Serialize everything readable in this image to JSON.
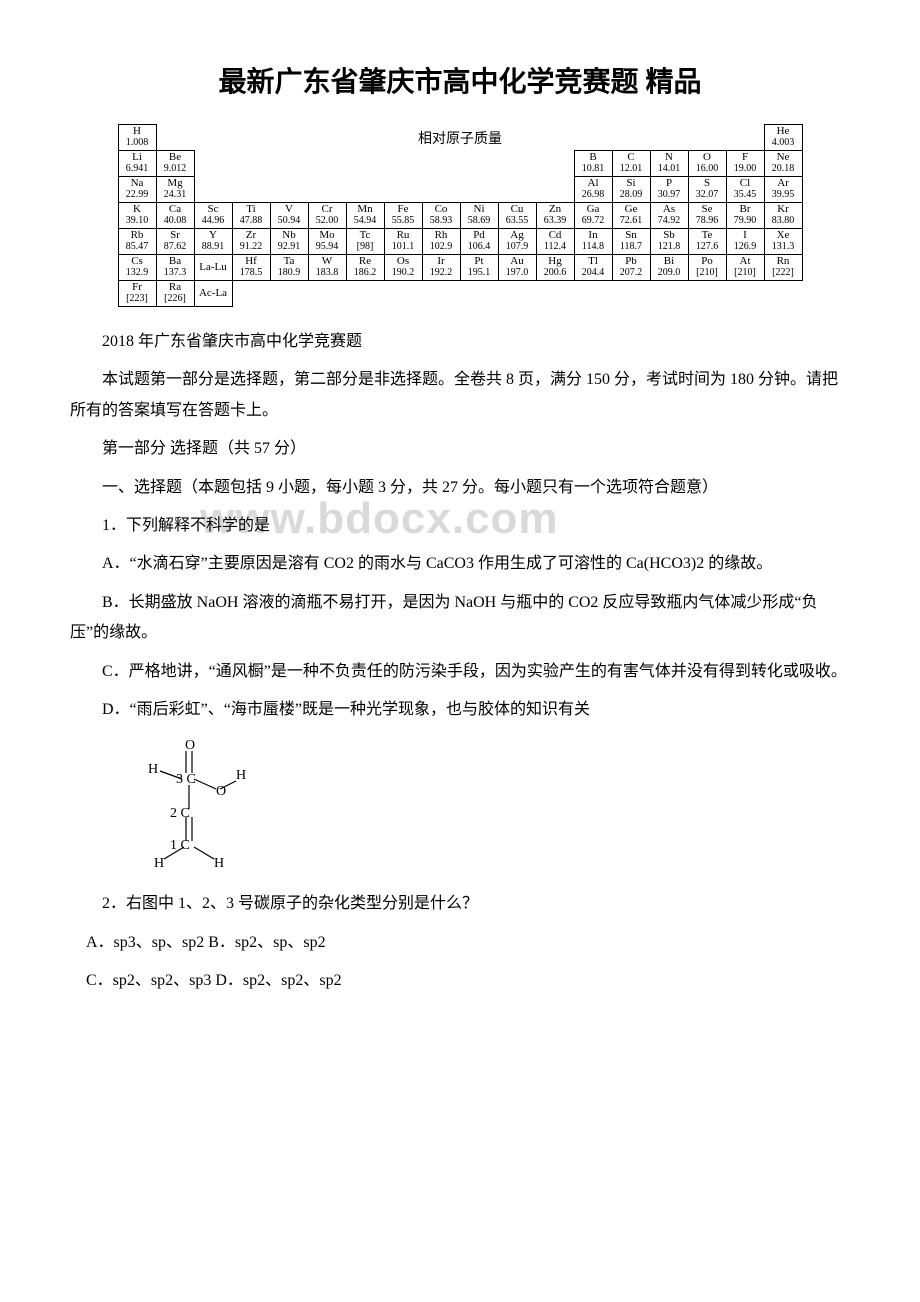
{
  "title": "最新广东省肇庆市高中化学竞赛题 精品",
  "periodic_table": {
    "caption": "相对原子质量",
    "row1": [
      {
        "sym": "H",
        "mass": "1.008"
      },
      null,
      null,
      null,
      null,
      null,
      null,
      null,
      null,
      null,
      null,
      null,
      null,
      null,
      null,
      null,
      null,
      {
        "sym": "He",
        "mass": "4.003"
      }
    ],
    "row2": [
      {
        "sym": "Li",
        "mass": "6.941"
      },
      {
        "sym": "Be",
        "mass": "9.012"
      },
      null,
      null,
      null,
      null,
      null,
      null,
      null,
      null,
      null,
      null,
      {
        "sym": "B",
        "mass": "10.81"
      },
      {
        "sym": "C",
        "mass": "12.01"
      },
      {
        "sym": "N",
        "mass": "14.01"
      },
      {
        "sym": "O",
        "mass": "16.00"
      },
      {
        "sym": "F",
        "mass": "19.00"
      },
      {
        "sym": "Ne",
        "mass": "20.18"
      }
    ],
    "row3": [
      {
        "sym": "Na",
        "mass": "22.99"
      },
      {
        "sym": "Mg",
        "mass": "24.31"
      },
      null,
      null,
      null,
      null,
      null,
      null,
      null,
      null,
      null,
      null,
      {
        "sym": "Al",
        "mass": "26.98"
      },
      {
        "sym": "Si",
        "mass": "28.09"
      },
      {
        "sym": "P",
        "mass": "30.97"
      },
      {
        "sym": "S",
        "mass": "32.07"
      },
      {
        "sym": "Cl",
        "mass": "35.45"
      },
      {
        "sym": "Ar",
        "mass": "39.95"
      }
    ],
    "row4": [
      {
        "sym": "K",
        "mass": "39.10"
      },
      {
        "sym": "Ca",
        "mass": "40.08"
      },
      {
        "sym": "Sc",
        "mass": "44.96"
      },
      {
        "sym": "Ti",
        "mass": "47.88"
      },
      {
        "sym": "V",
        "mass": "50.94"
      },
      {
        "sym": "Cr",
        "mass": "52.00"
      },
      {
        "sym": "Mn",
        "mass": "54.94"
      },
      {
        "sym": "Fe",
        "mass": "55.85"
      },
      {
        "sym": "Co",
        "mass": "58.93"
      },
      {
        "sym": "Ni",
        "mass": "58.69"
      },
      {
        "sym": "Cu",
        "mass": "63.55"
      },
      {
        "sym": "Zn",
        "mass": "63.39"
      },
      {
        "sym": "Ga",
        "mass": "69.72"
      },
      {
        "sym": "Ge",
        "mass": "72.61"
      },
      {
        "sym": "As",
        "mass": "74.92"
      },
      {
        "sym": "Se",
        "mass": "78.96"
      },
      {
        "sym": "Br",
        "mass": "79.90"
      },
      {
        "sym": "Kr",
        "mass": "83.80"
      }
    ],
    "row5": [
      {
        "sym": "Rb",
        "mass": "85.47"
      },
      {
        "sym": "Sr",
        "mass": "87.62"
      },
      {
        "sym": "Y",
        "mass": "88.91"
      },
      {
        "sym": "Zr",
        "mass": "91.22"
      },
      {
        "sym": "Nb",
        "mass": "92.91"
      },
      {
        "sym": "Mo",
        "mass": "95.94"
      },
      {
        "sym": "Tc",
        "mass": "[98]"
      },
      {
        "sym": "Ru",
        "mass": "101.1"
      },
      {
        "sym": "Rh",
        "mass": "102.9"
      },
      {
        "sym": "Pd",
        "mass": "106.4"
      },
      {
        "sym": "Ag",
        "mass": "107.9"
      },
      {
        "sym": "Cd",
        "mass": "112.4"
      },
      {
        "sym": "In",
        "mass": "114.8"
      },
      {
        "sym": "Sn",
        "mass": "118.7"
      },
      {
        "sym": "Sb",
        "mass": "121.8"
      },
      {
        "sym": "Te",
        "mass": "127.6"
      },
      {
        "sym": "I",
        "mass": "126.9"
      },
      {
        "sym": "Xe",
        "mass": "131.3"
      }
    ],
    "row6": [
      {
        "sym": "Cs",
        "mass": "132.9"
      },
      {
        "sym": "Ba",
        "mass": "137.3"
      },
      {
        "sym": "La-Lu",
        "mass": ""
      },
      {
        "sym": "Hf",
        "mass": "178.5"
      },
      {
        "sym": "Ta",
        "mass": "180.9"
      },
      {
        "sym": "W",
        "mass": "183.8"
      },
      {
        "sym": "Re",
        "mass": "186.2"
      },
      {
        "sym": "Os",
        "mass": "190.2"
      },
      {
        "sym": "Ir",
        "mass": "192.2"
      },
      {
        "sym": "Pt",
        "mass": "195.1"
      },
      {
        "sym": "Au",
        "mass": "197.0"
      },
      {
        "sym": "Hg",
        "mass": "200.6"
      },
      {
        "sym": "Tl",
        "mass": "204.4"
      },
      {
        "sym": "Pb",
        "mass": "207.2"
      },
      {
        "sym": "Bi",
        "mass": "209.0"
      },
      {
        "sym": "Po",
        "mass": "[210]"
      },
      {
        "sym": "At",
        "mass": "[210]"
      },
      {
        "sym": "Rn",
        "mass": "[222]"
      }
    ],
    "row7": [
      {
        "sym": "Fr",
        "mass": "[223]"
      },
      {
        "sym": "Ra",
        "mass": "[226]"
      },
      {
        "sym": "Ac-La",
        "mass": ""
      },
      null,
      null,
      null,
      null,
      null,
      null,
      null,
      null,
      null,
      null,
      null,
      null,
      null,
      null,
      null
    ]
  },
  "paragraphs": {
    "p1": "2018 年广东省肇庆市高中化学竞赛题",
    "p2": "本试题第一部分是选择题，第二部分是非选择题。全卷共 8 页，满分 150 分，考试时间为 180 分钟。请把所有的答案填写在答题卡上。",
    "p3": "第一部分 选择题（共 57 分）",
    "p4": "一、选择题（本题包括 9 小题，每小题 3 分，共 27 分。每小题只有一个选项符合题意）",
    "q1": "1．下列解释不科学的是",
    "q1a": "A．“水滴石穿”主要原因是溶有 CO2 的雨水与 CaCO3 作用生成了可溶性的 Ca(HCO3)2 的缘故。",
    "q1b": "B．长期盛放 NaOH 溶液的滴瓶不易打开，是因为 NaOH 与瓶中的 CO2 反应导致瓶内气体减少形成“负压”的缘故。",
    "q1c": "C．严格地讲，“通风橱”是一种不负责任的防污染手段，因为实验产生的有害气体并没有得到转化或吸收。",
    "q1d": "D．“雨后彩虹”、“海市蜃楼”既是一种光学现象，也与胶体的知识有关",
    "q2": "2．右图中 1、2、3 号碳原子的杂化类型分别是什么？",
    "q2a": " A．sp3、sp、sp2   B．sp2、sp、sp2",
    "q2b": " C．sp2、sp2、sp3   D．sp2、sp2、sp2"
  },
  "watermark": "www.bdocx.com",
  "molecule": {
    "labels": {
      "O": "O",
      "H": "H",
      "c1": "1 C",
      "c2": "2 C",
      "c3": "3 C"
    }
  }
}
